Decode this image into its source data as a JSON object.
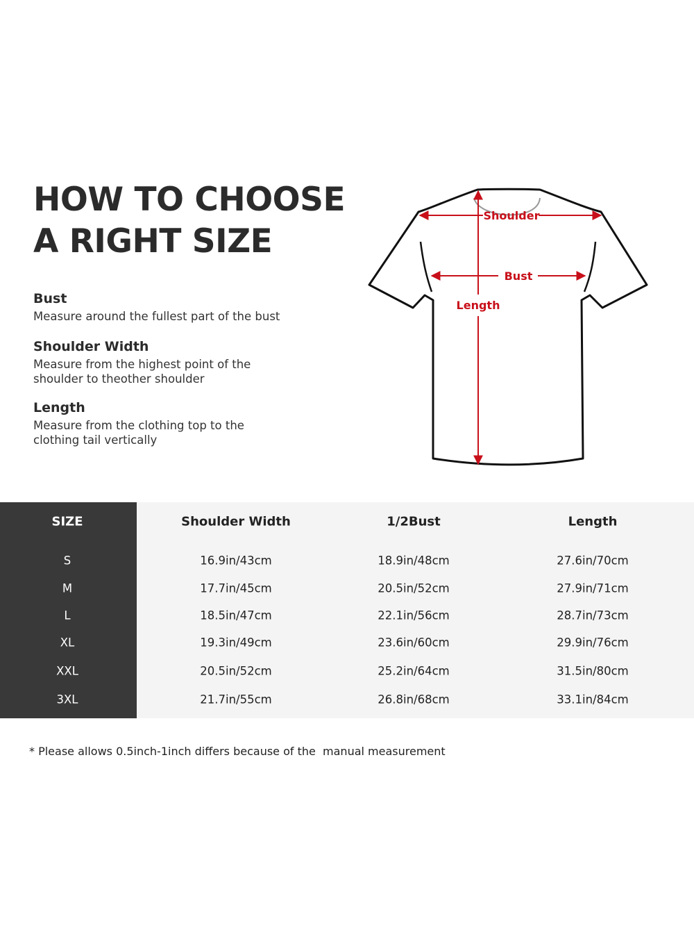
{
  "title": {
    "line1": "HOW TO CHOOSE",
    "line2": "A RIGHT SIZE"
  },
  "guides": [
    {
      "heading": "Bust",
      "text": "Measure around the fullest part of the bust"
    },
    {
      "heading": "Shoulder Width",
      "text": "Measure from the highest point of the shoulder to theother shoulder"
    },
    {
      "heading": "Length",
      "text": "Measure from the clothing top to the clothing tail vertically"
    }
  ],
  "diagram": {
    "shoulder_label": "Shoulder",
    "bust_label": "Bust",
    "length_label": "Length",
    "accent_color": "#c8101a"
  },
  "table": {
    "headers": [
      "SIZE",
      "Shoulder Width",
      "1/2Bust",
      "Length"
    ],
    "rows": [
      [
        "S",
        "16.9in/43cm",
        "18.9in/48cm",
        "27.6in/70cm"
      ],
      [
        "M",
        "17.7in/45cm",
        "20.5in/52cm",
        "27.9in/71cm"
      ],
      [
        "L",
        "18.5in/47cm",
        "22.1in/56cm",
        "28.7in/73cm"
      ],
      [
        "XL",
        "19.3in/49cm",
        "23.6in/60cm",
        "29.9in/76cm"
      ],
      [
        "XXL",
        "20.5in/52cm",
        "25.2in/64cm",
        "31.5in/80cm"
      ],
      [
        "3XL",
        "21.7in/55cm",
        "26.8in/68cm",
        "33.1in/84cm"
      ]
    ]
  },
  "note": "* Please allows 0.5inch-1inch differs because of the  manual measurement"
}
